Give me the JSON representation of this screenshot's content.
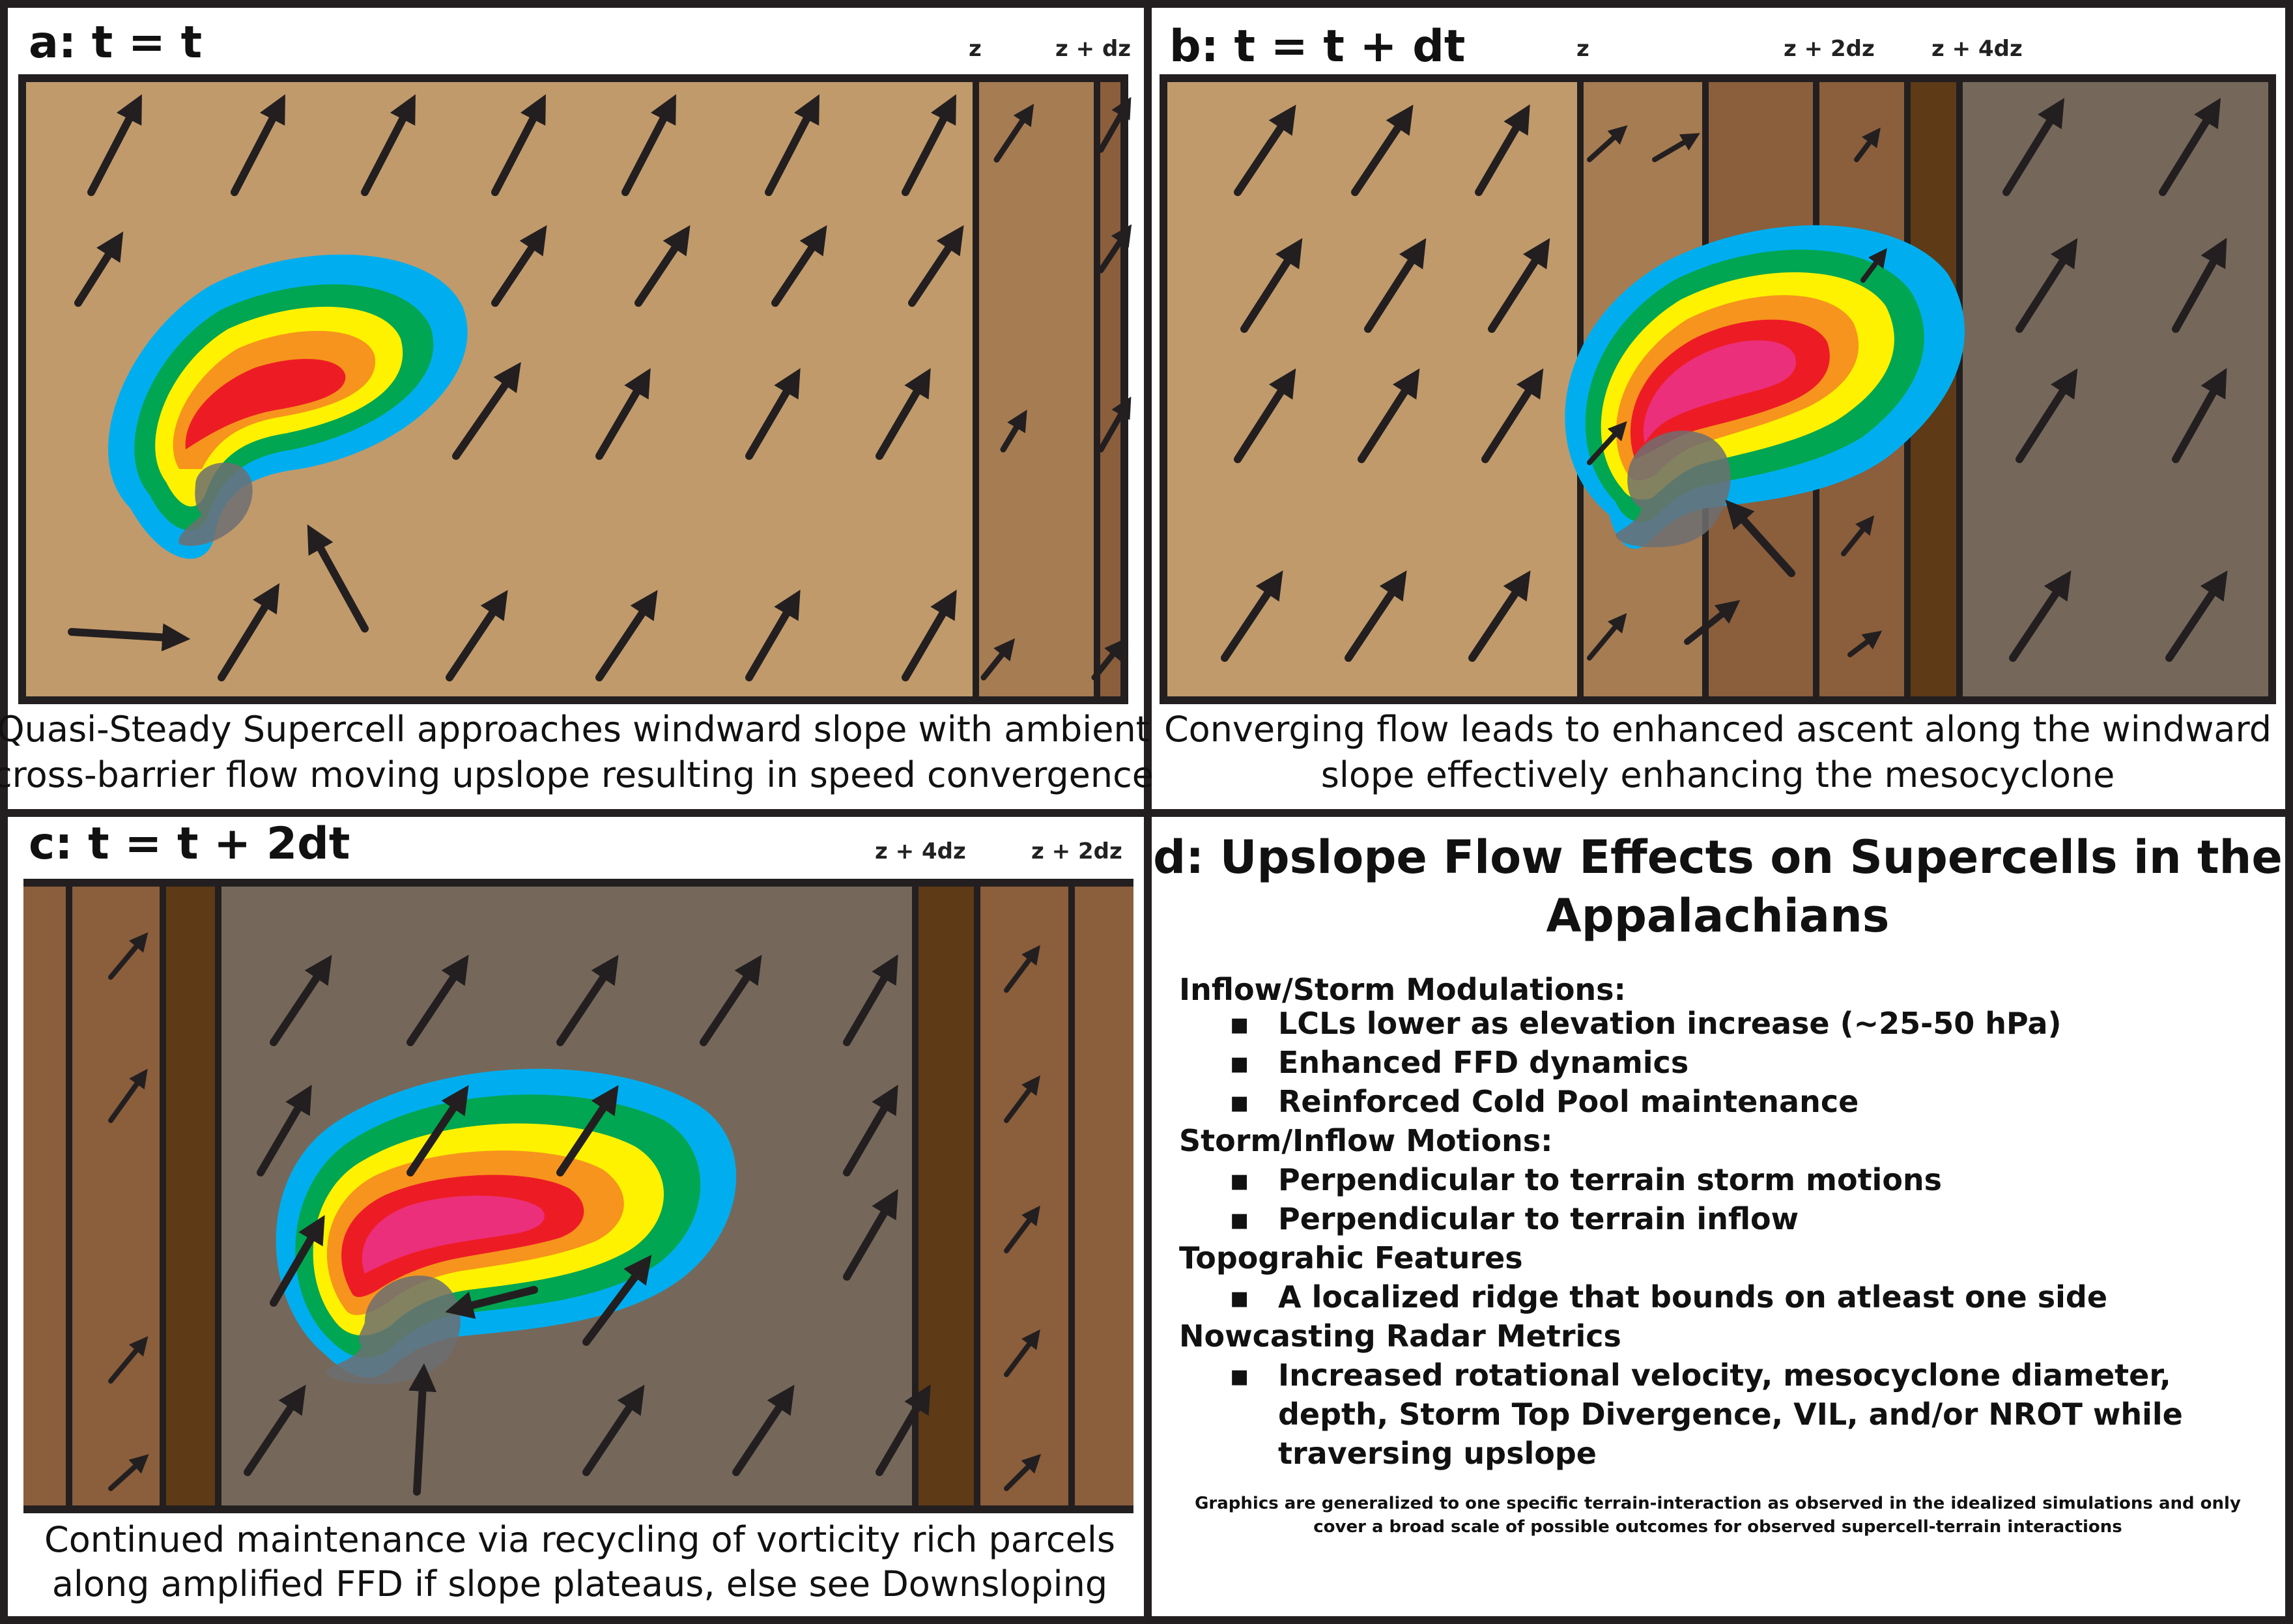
{
  "panels": {
    "a": {
      "title": "a: t = t",
      "z_labels": [
        "z",
        "z + dz"
      ],
      "caption": [
        "Quasi-Steady Supercell approaches windward slope with ambient",
        "cross-barrier flow moving upslope resulting in speed convergence"
      ]
    },
    "b": {
      "title": "b: t = t + dt",
      "z_labels": [
        "z",
        "z + 2dz",
        "z + 4dz"
      ],
      "caption": [
        "Converging flow leads to enhanced ascent along the windward",
        "slope effectively enhancing the mesocyclone"
      ]
    },
    "c": {
      "title": "c: t = t + 2dt",
      "z_labels": [
        "z + 4dz",
        "z + 2dz"
      ],
      "caption": [
        "Continued maintenance via recycling of vorticity rich parcels",
        "along amplified FFD if slope plateaus, else see Downsloping"
      ]
    },
    "d": {
      "heading": [
        "d: Upslope Flow Effects on Supercells in the",
        "Appalachians"
      ],
      "sections": [
        {
          "title": "Inflow/Storm Modulations:",
          "items": [
            "LCLs lower as elevation increase (~25-50 hPa)",
            "Enhanced FFD dynamics",
            "Reinforced Cold Pool maintenance"
          ]
        },
        {
          "title": "Storm/Inflow Motions:",
          "items": [
            "Perpendicular to terrain storm motions",
            "Perpendicular to terrain inflow"
          ]
        },
        {
          "title": "Topograhic Features",
          "items": [
            "A localized ridge that bounds on atleast one side"
          ]
        },
        {
          "title": "Nowcasting Radar Metrics",
          "items": [
            "Increased rotational velocity, mesocyclone diameter,",
            "depth, Storm Top Divergence, VIL, and/or NROT while",
            "traversing upslope"
          ]
        }
      ],
      "footnote": [
        "Graphics are generalized to one specific terrain-interaction as observed in the idealized simulations and only",
        "cover a broad scale of possible outcomes for observed supercell-terrain interactions"
      ],
      "bullet_char": "▪"
    }
  },
  "colors": {
    "terrain_low": "#c19a6b",
    "terrain_mid": "#a67c52",
    "terrain_high": "#8b5e3c",
    "terrain_ridge": "#5e3a16",
    "terrain_plateau": "#75685a",
    "storm_cyan": "#00aeef",
    "storm_green": "#00a651",
    "storm_yellow": "#fff200",
    "storm_orange": "#f7941d",
    "storm_red": "#ed1c24",
    "storm_magenta": "#ec2f7b",
    "cold_pool": "#6d6e71",
    "arrow": "#231f20"
  }
}
